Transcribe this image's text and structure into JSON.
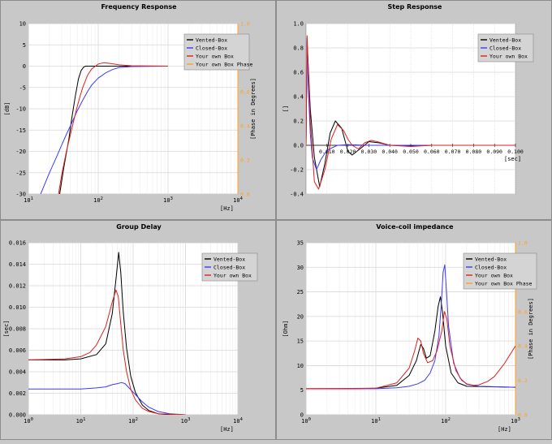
{
  "colors": {
    "vented": "#000000",
    "closed": "#3a3aff",
    "own": "#e0201e",
    "phase": "#ffa020",
    "grid": "#d8d8d8",
    "minor": "#ececec",
    "plot_bg": "#ffffff",
    "panel_bg": "#c8c8c8",
    "legend_bg": "#d4d4d4"
  },
  "chart_data": [
    {
      "title": "Frequency Response",
      "type": "line",
      "xlabel": "[Hz]",
      "ylabel": "[dB]",
      "y2label": "[Phase in Degrees]",
      "x_scale": "log",
      "xlim": [
        10,
        10000
      ],
      "ylim": [
        -30,
        10
      ],
      "y2lim": [
        0.0,
        1.0
      ],
      "xticks": [
        "10^1",
        "10^2",
        "10^3",
        "10^4"
      ],
      "yticks": [
        "10",
        "5",
        "0",
        "-5",
        "-10",
        "-15",
        "-20",
        "-25",
        "-30"
      ],
      "y2ticks": [
        "1.0",
        "0.8",
        "0.6",
        "0.4",
        "0.2",
        "0.0"
      ],
      "legend": [
        "Vented-Box",
        "Closed-Box",
        "Your own Box",
        "Your own Box Phase"
      ],
      "series": [
        {
          "name": "Vented-Box",
          "x": [
            28,
            32,
            38,
            42,
            47,
            52,
            57,
            62,
            66,
            70,
            80,
            100,
            1000
          ],
          "y": [
            -30,
            -24,
            -17,
            -12,
            -7,
            -3,
            -1,
            -0.2,
            0,
            0,
            0,
            0,
            0
          ]
        },
        {
          "name": "Closed-Box",
          "x": [
            15,
            20,
            25,
            30,
            35,
            40,
            50,
            60,
            70,
            80,
            100,
            130,
            160,
            200,
            300,
            1000
          ],
          "y": [
            -30,
            -25,
            -21.5,
            -18.5,
            -16,
            -14,
            -10.5,
            -8,
            -6,
            -4.5,
            -2.8,
            -1.5,
            -0.8,
            -0.3,
            -0.1,
            0
          ]
        },
        {
          "name": "Your own Box",
          "x": [
            27,
            30,
            35,
            40,
            45,
            50,
            55,
            60,
            70,
            80,
            100,
            120,
            150,
            200,
            300,
            1000
          ],
          "y": [
            -30,
            -25.5,
            -20,
            -16,
            -12.5,
            -9.5,
            -7,
            -5,
            -2.2,
            -0.7,
            0.5,
            0.8,
            0.6,
            0.3,
            0.1,
            0
          ]
        }
      ]
    },
    {
      "title": "Step Response",
      "type": "line",
      "xlabel": "[sec]",
      "ylabel": "[]",
      "xlim": [
        0,
        0.1
      ],
      "ylim": [
        -0.4,
        1.0
      ],
      "xticks": [
        "0.010",
        "0.020",
        "0.030",
        "0.040",
        "0.050",
        "0.060",
        "0.070",
        "0.080",
        "0.090",
        "0.100"
      ],
      "yticks": [
        "1.0",
        "0.8",
        "0.6",
        "0.4",
        "0.2",
        "0.0",
        "-0.2",
        "-0.4"
      ],
      "legend": [
        "Vented-Box",
        "Closed-Box",
        "Your own Box"
      ],
      "series": [
        {
          "name": "Vented-Box",
          "x": [
            0,
            0.0005,
            0.002,
            0.004,
            0.0065,
            0.009,
            0.0115,
            0.014,
            0.017,
            0.02,
            0.022,
            0.025,
            0.03,
            0.035,
            0.04,
            0.05,
            0.06,
            0.07,
            0.08,
            0.09,
            0.1
          ],
          "y": [
            0,
            0.85,
            0.3,
            -0.1,
            -0.34,
            -0.15,
            0.1,
            0.2,
            0.14,
            -0.05,
            -0.08,
            -0.04,
            0.03,
            0.02,
            0,
            -0.005,
            0,
            0,
            0,
            0,
            0
          ]
        },
        {
          "name": "Closed-Box",
          "x": [
            0,
            0.0005,
            0.001,
            0.002,
            0.003,
            0.005,
            0.007,
            0.01,
            0.015,
            0.02,
            0.03,
            0.05,
            0.1
          ],
          "y": [
            0,
            0.88,
            0.5,
            0.1,
            -0.1,
            -0.2,
            -0.12,
            -0.04,
            0,
            0.005,
            0,
            0,
            0
          ]
        },
        {
          "name": "Your own Box",
          "x": [
            0,
            0.0005,
            0.002,
            0.004,
            0.006,
            0.009,
            0.012,
            0.015,
            0.018,
            0.02,
            0.022,
            0.025,
            0.028,
            0.031,
            0.034,
            0.04,
            0.05,
            0.06,
            0.08,
            0.1
          ],
          "y": [
            0,
            0.9,
            0.2,
            -0.3,
            -0.36,
            -0.2,
            0.05,
            0.17,
            0.12,
            0.05,
            0.0,
            -0.03,
            0.02,
            0.04,
            0.03,
            0.0,
            -0.01,
            0.0,
            0,
            0
          ]
        }
      ]
    },
    {
      "title": "Group Delay",
      "type": "line",
      "xlabel": "[Hz]",
      "ylabel": "[sec]",
      "x_scale": "log",
      "xlim": [
        1,
        10000
      ],
      "ylim": [
        0,
        0.016
      ],
      "xticks": [
        "10^0",
        "10^1",
        "10^2",
        "10^3",
        "10^4"
      ],
      "yticks": [
        "0.016",
        "0.014",
        "0.012",
        "0.010",
        "0.008",
        "0.006",
        "0.004",
        "0.002",
        "0.000"
      ],
      "legend": [
        "Vented-Box",
        "Closed-Box",
        "Your own Box"
      ],
      "series": [
        {
          "name": "Vented-Box",
          "x": [
            1,
            5,
            10,
            20,
            30,
            40,
            48,
            53,
            58,
            65,
            75,
            90,
            110,
            150,
            200,
            300,
            500,
            1000
          ],
          "y": [
            0.0051,
            0.0051,
            0.0052,
            0.0056,
            0.0066,
            0.0094,
            0.013,
            0.0151,
            0.0133,
            0.0095,
            0.0062,
            0.0036,
            0.0021,
            0.0009,
            0.0004,
            0.0001,
            0,
            0
          ]
        },
        {
          "name": "Closed-Box",
          "x": [
            1,
            5,
            10,
            20,
            30,
            40,
            50,
            60,
            70,
            80,
            100,
            150,
            200,
            300,
            500,
            1000
          ],
          "y": [
            0.0024,
            0.0024,
            0.0024,
            0.0025,
            0.0026,
            0.0028,
            0.0029,
            0.003,
            0.0029,
            0.0026,
            0.0021,
            0.0012,
            0.0007,
            0.0003,
            0.0001,
            0
          ]
        },
        {
          "name": "Your own Box",
          "x": [
            1,
            5,
            10,
            15,
            20,
            30,
            40,
            47,
            52,
            58,
            65,
            75,
            90,
            110,
            150,
            200,
            300,
            1000
          ],
          "y": [
            0.0051,
            0.0052,
            0.0054,
            0.0058,
            0.0065,
            0.0082,
            0.0105,
            0.0116,
            0.011,
            0.0085,
            0.006,
            0.004,
            0.0024,
            0.0014,
            0.0006,
            0.0003,
            0.0001,
            0
          ]
        }
      ]
    },
    {
      "title": "Voice-coil impedance",
      "type": "line",
      "xlabel": "[Hz]",
      "ylabel": "[Ohm]",
      "y2label": "[Phase in Degrees]",
      "x_scale": "log",
      "xlim": [
        1,
        1000
      ],
      "ylim": [
        0,
        35
      ],
      "y2lim": [
        0.0,
        1.0
      ],
      "xticks": [
        "10^0",
        "10^1",
        "10^2",
        "10^3"
      ],
      "yticks": [
        "35",
        "30",
        "25",
        "20",
        "15",
        "10",
        "5",
        "0"
      ],
      "y2ticks": [
        "1.0",
        "0.8",
        "0.6",
        "0.4",
        "0.2",
        "0.0"
      ],
      "legend": [
        "Vented-Box",
        "Closed-Box",
        "Your own Box",
        "Your own Box Phase"
      ],
      "series": [
        {
          "name": "Vented-Box",
          "x": [
            1,
            5,
            10,
            20,
            30,
            38,
            44,
            48,
            53,
            60,
            70,
            78,
            84,
            90,
            100,
            120,
            150,
            200,
            1000
          ],
          "y": [
            5.3,
            5.3,
            5.4,
            6,
            8,
            11,
            14.3,
            13.5,
            11.5,
            12,
            17,
            22,
            24,
            21,
            14,
            8.5,
            6.5,
            5.8,
            5.6
          ]
        },
        {
          "name": "Closed-Box",
          "x": [
            1,
            5,
            10,
            20,
            30,
            40,
            50,
            60,
            70,
            80,
            86,
            92,
            97,
            102,
            110,
            130,
            160,
            200,
            300,
            1000
          ],
          "y": [
            5.3,
            5.3,
            5.3,
            5.5,
            5.8,
            6.3,
            7,
            8.5,
            11,
            16,
            22,
            29,
            30.5,
            26,
            18,
            10.5,
            7.5,
            6.2,
            5.8,
            5.6
          ]
        },
        {
          "name": "Your own Box",
          "x": [
            1,
            10,
            20,
            30,
            36,
            40,
            44,
            48,
            55,
            65,
            75,
            88,
            96,
            104,
            115,
            140,
            170,
            200,
            250,
            300,
            400,
            500,
            700,
            1000
          ],
          "y": [
            5.3,
            5.4,
            6.5,
            9.5,
            13,
            15.6,
            15,
            12.5,
            10.6,
            11,
            13,
            17,
            21,
            19.5,
            14,
            9,
            7,
            6.3,
            6,
            6.1,
            6.8,
            7.8,
            10.5,
            14
          ]
        }
      ]
    }
  ]
}
